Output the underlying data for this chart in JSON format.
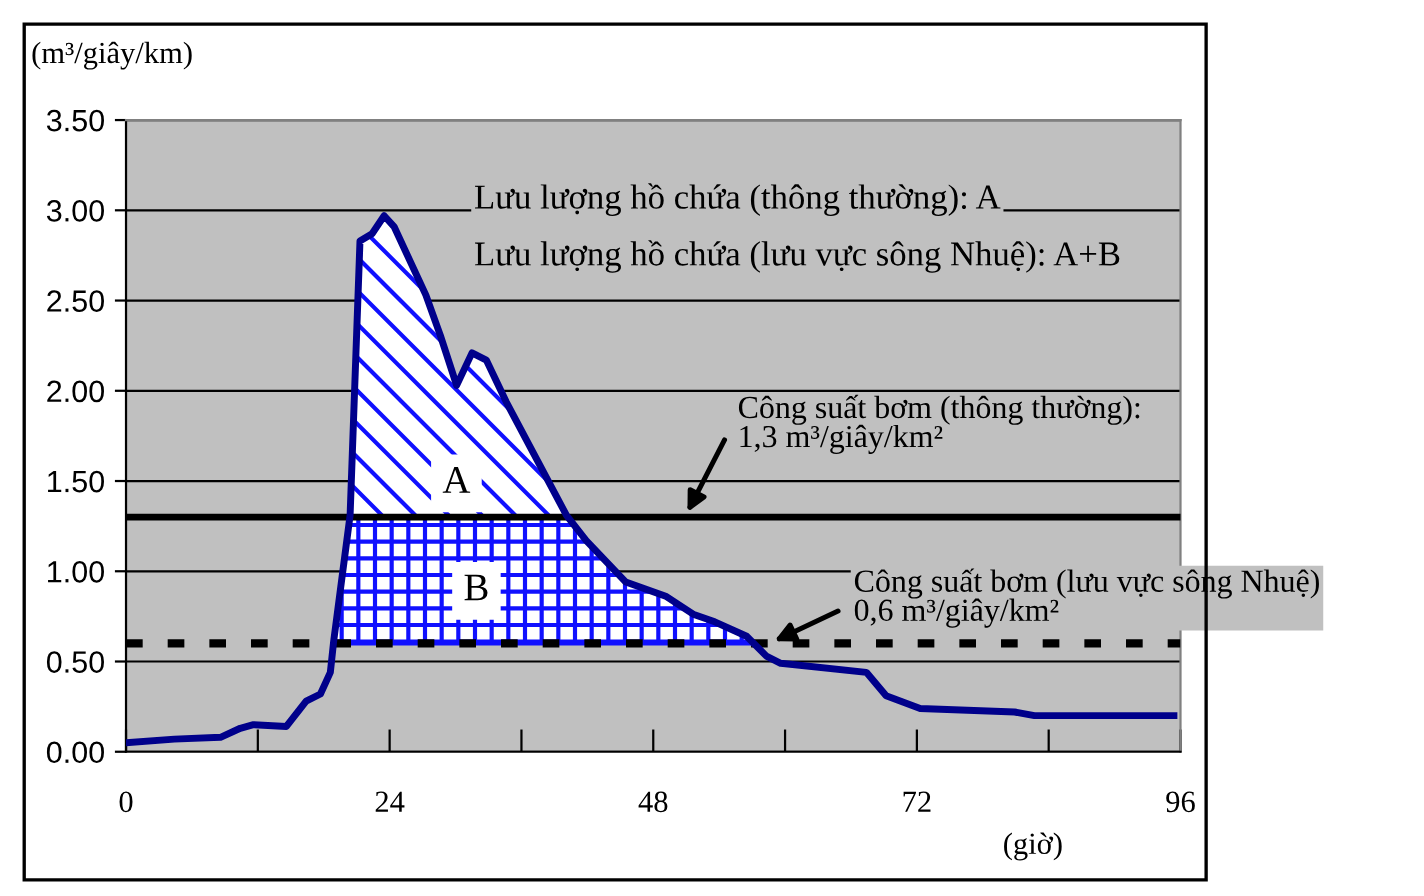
{
  "chart_data": {
    "type": "line",
    "ylabel": "(m³/giây/km)",
    "xlabel": "(giờ)",
    "x": [
      0,
      4.4,
      8.6,
      10.4,
      11.6,
      14.6,
      16.4,
      17.7,
      18.6,
      18.9,
      20.4,
      21.3,
      22.4,
      23.5,
      24.4,
      27.3,
      28.6,
      30.1,
      31.5,
      32.8,
      34.6,
      40.1,
      41.9,
      45.5,
      49.2,
      51.7,
      53.6,
      56.5,
      58.3,
      59.6,
      67.4,
      69.2,
      72.3,
      80.9,
      82.7,
      95.4
    ],
    "series": [
      {
        "color": "#00008b",
        "values": [
          0.05,
          0.07,
          0.08,
          0.13,
          0.15,
          0.14,
          0.28,
          0.32,
          0.44,
          0.61,
          1.31,
          2.83,
          2.87,
          2.97,
          2.91,
          2.53,
          2.31,
          2.03,
          2.21,
          2.17,
          1.94,
          1.31,
          1.17,
          0.94,
          0.86,
          0.76,
          0.72,
          0.64,
          0.53,
          0.49,
          0.44,
          0.31,
          0.24,
          0.22,
          0.2,
          0.2
        ]
      }
    ],
    "xlim": [
      0,
      96
    ],
    "xticks": [
      0,
      {
        "value": 12,
        "label": null
      },
      24,
      {
        "value": 36,
        "label": null
      },
      48,
      {
        "value": 60,
        "label": null
      },
      72,
      {
        "value": 84,
        "label": null
      },
      96
    ],
    "ylim": [
      0,
      3.5
    ],
    "yticks": [
      {
        "value": 0,
        "label": "0.00"
      },
      {
        "value": 0.5,
        "label": "0.50"
      },
      {
        "value": 1,
        "label": "1.00"
      },
      {
        "value": 1.5,
        "label": "1.50"
      },
      {
        "value": 2,
        "label": "2.00"
      },
      {
        "value": 2.5,
        "label": "2.50"
      },
      {
        "value": 3,
        "label": "3.00"
      },
      {
        "value": 3.5,
        "label": "3.50"
      }
    ],
    "ref_lines": [
      {
        "axis": "y",
        "value": 1.3,
        "label": "Công suất bơm (thông thường):\n1,3 m³/giây/km²",
        "color": "#000000",
        "line_style": "solid"
      },
      {
        "axis": "y",
        "value": 0.6,
        "label": "Công suất bơm (lưu vực sông Nhuệ)\n0,6 m³/giây/km²",
        "color": "#000000",
        "line_style": "dotted"
      }
    ],
    "annotations": [
      "Lưu lượng hồ chứa (thông thường): A",
      "Lưu lượng hồ chứa (lưu vực sông Nhuệ): A+B",
      "A",
      "B"
    ],
    "grid": "y",
    "marker": "none",
    "line_style": "solid"
  }
}
